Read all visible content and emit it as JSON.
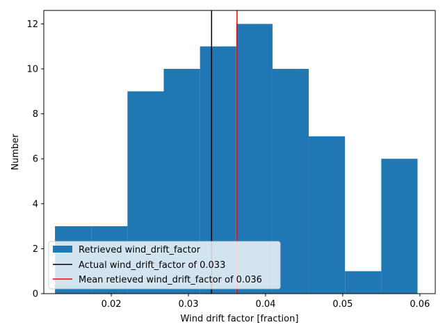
{
  "chart_data": {
    "type": "histogram",
    "xlabel": "Wind drift factor  [fraction]",
    "ylabel": "Number",
    "xlim": [
      0.01125,
      0.062
    ],
    "ylim": [
      0,
      12.6
    ],
    "x_ticks": [
      0.02,
      0.03,
      0.04,
      0.05,
      0.06
    ],
    "x_tick_labels": [
      "0.02",
      "0.03",
      "0.04",
      "0.05",
      "0.06"
    ],
    "y_ticks": [
      0,
      2,
      4,
      6,
      8,
      10,
      12
    ],
    "y_tick_labels": [
      "0",
      "2",
      "4",
      "6",
      "8",
      "10",
      "12"
    ],
    "bins": [
      {
        "x0": 0.0127,
        "x1": 0.0174,
        "count": 3
      },
      {
        "x0": 0.0174,
        "x1": 0.0221,
        "count": 3
      },
      {
        "x0": 0.0221,
        "x1": 0.0268,
        "count": 9
      },
      {
        "x0": 0.0268,
        "x1": 0.0315,
        "count": 10
      },
      {
        "x0": 0.0315,
        "x1": 0.0362,
        "count": 11
      },
      {
        "x0": 0.0362,
        "x1": 0.0409,
        "count": 12
      },
      {
        "x0": 0.0409,
        "x1": 0.0456,
        "count": 10
      },
      {
        "x0": 0.0456,
        "x1": 0.0503,
        "count": 7
      },
      {
        "x0": 0.0503,
        "x1": 0.055,
        "count": 1
      },
      {
        "x0": 0.055,
        "x1": 0.0597,
        "count": 6
      }
    ],
    "bar_color": "#1f77b4",
    "vlines": [
      {
        "name": "Actual wind_drift_factor of 0.033",
        "x": 0.033,
        "color": "#000000"
      },
      {
        "name": "Mean retieved wind_drift_factor of 0.036",
        "x": 0.0363,
        "color": "#ff0000"
      }
    ],
    "histogram_name": "Retrieved wind_drift_factor",
    "legend_position": "lower-left",
    "grid": false
  }
}
